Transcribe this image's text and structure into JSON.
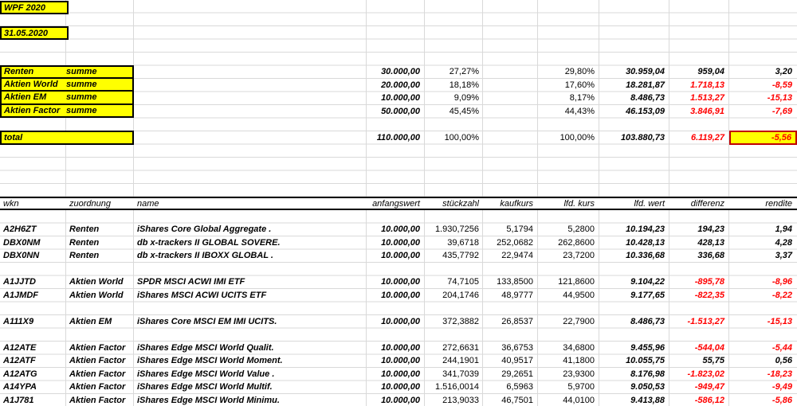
{
  "page": {
    "title": "WPF 2020",
    "date": "31.05.2020"
  },
  "colors": {
    "highlight": "#ffff00",
    "negative": "#ff0000",
    "box_border": "#000000",
    "total_rendite_border": "#c00000"
  },
  "summary": {
    "rows": [
      {
        "label": "Renten",
        "sub": "summe",
        "anfangswert": "30.000,00",
        "anteil_plan": "27,27%",
        "anteil_ist": "29,80%",
        "wert": "30.959,04",
        "differenz": "959,04",
        "rendite": "3,20"
      },
      {
        "label": "Aktien World",
        "sub": "summe",
        "anfangswert": "20.000,00",
        "anteil_plan": "18,18%",
        "anteil_ist": "17,60%",
        "wert": "18.281,87",
        "differenz": "1.718,13",
        "rendite": "-8,59"
      },
      {
        "label": "Aktien EM",
        "sub": "summe",
        "anfangswert": "10.000,00",
        "anteil_plan": "9,09%",
        "anteil_ist": "8,17%",
        "wert": "8.486,73",
        "differenz": "1.513,27",
        "rendite": "-15,13"
      },
      {
        "label": "Aktien Factor",
        "sub": "summe",
        "anfangswert": "50.000,00",
        "anteil_plan": "45,45%",
        "anteil_ist": "44,43%",
        "wert": "46.153,09",
        "differenz": "3.846,91",
        "rendite": "-7,69"
      }
    ],
    "total": {
      "label": "total",
      "anfangswert": "110.000,00",
      "anteil_plan": "100,00%",
      "anteil_ist": "100,00%",
      "wert": "103.880,73",
      "differenz": "6.119,27",
      "rendite": "-5,56"
    }
  },
  "table": {
    "headers": [
      "wkn",
      "zuordnung",
      "name",
      "anfangswert",
      "stückzahl",
      "kaufkurs",
      "lfd. kurs",
      "lfd. wert",
      "differenz",
      "rendite"
    ],
    "rows": [
      {
        "wkn": "A2H6ZT",
        "zuordnung": "Renten",
        "name": "iShares Core Global Aggregate .",
        "anfangswert": "10.000,00",
        "stueckzahl": "1.930,7256",
        "kaufkurs": "5,1794",
        "kurs": "5,2800",
        "wert": "10.194,23",
        "differenz": "194,23",
        "rendite": "1,94"
      },
      {
        "wkn": "DBX0NM",
        "zuordnung": "Renten",
        "name": "db x-trackers II GLOBAL SOVERE.",
        "anfangswert": "10.000,00",
        "stueckzahl": "39,6718",
        "kaufkurs": "252,0682",
        "kurs": "262,8600",
        "wert": "10.428,13",
        "differenz": "428,13",
        "rendite": "4,28"
      },
      {
        "wkn": "DBX0NN",
        "zuordnung": "Renten",
        "name": "db x-trackers II IBOXX GLOBAL .",
        "anfangswert": "10.000,00",
        "stueckzahl": "435,7792",
        "kaufkurs": "22,9474",
        "kurs": "23,7200",
        "wert": "10.336,68",
        "differenz": "336,68",
        "rendite": "3,37"
      },
      {
        "wkn": "A1JJTD",
        "zuordnung": "Aktien World",
        "name": "SPDR MSCI ACWI IMI ETF",
        "anfangswert": "10.000,00",
        "stueckzahl": "74,7105",
        "kaufkurs": "133,8500",
        "kurs": "121,8600",
        "wert": "9.104,22",
        "differenz": "-895,78",
        "rendite": "-8,96",
        "gap_before": true
      },
      {
        "wkn": "A1JMDF",
        "zuordnung": "Aktien World",
        "name": "iShares MSCI ACWI UCITS ETF",
        "anfangswert": "10.000,00",
        "stueckzahl": "204,1746",
        "kaufkurs": "48,9777",
        "kurs": "44,9500",
        "wert": "9.177,65",
        "differenz": "-822,35",
        "rendite": "-8,22"
      },
      {
        "wkn": "A111X9",
        "zuordnung": "Aktien EM",
        "name": "iShares Core MSCI EM IMI UCITS.",
        "anfangswert": "10.000,00",
        "stueckzahl": "372,3882",
        "kaufkurs": "26,8537",
        "kurs": "22,7900",
        "wert": "8.486,73",
        "differenz": "-1.513,27",
        "rendite": "-15,13",
        "gap_before": true
      },
      {
        "wkn": "A12ATE",
        "zuordnung": "Aktien Factor",
        "name": "iShares Edge MSCI World Qualit.",
        "anfangswert": "10.000,00",
        "stueckzahl": "272,6631",
        "kaufkurs": "36,6753",
        "kurs": "34,6800",
        "wert": "9.455,96",
        "differenz": "-544,04",
        "rendite": "-5,44",
        "gap_before": true
      },
      {
        "wkn": "A12ATF",
        "zuordnung": "Aktien Factor",
        "name": "iShares Edge MSCI World Moment.",
        "anfangswert": "10.000,00",
        "stueckzahl": "244,1901",
        "kaufkurs": "40,9517",
        "kurs": "41,1800",
        "wert": "10.055,75",
        "differenz": "55,75",
        "rendite": "0,56"
      },
      {
        "wkn": "A12ATG",
        "zuordnung": "Aktien Factor",
        "name": "iShares Edge MSCI World Value .",
        "anfangswert": "10.000,00",
        "stueckzahl": "341,7039",
        "kaufkurs": "29,2651",
        "kurs": "23,9300",
        "wert": "8.176,98",
        "differenz": "-1.823,02",
        "rendite": "-18,23"
      },
      {
        "wkn": "A14YPA",
        "zuordnung": "Aktien Factor",
        "name": "iShares Edge MSCI World Multif.",
        "anfangswert": "10.000,00",
        "stueckzahl": "1.516,0014",
        "kaufkurs": "6,5963",
        "kurs": "5,9700",
        "wert": "9.050,53",
        "differenz": "-949,47",
        "rendite": "-9,49"
      },
      {
        "wkn": "A1J781",
        "zuordnung": "Aktien Factor",
        "name": "iShares Edge MSCI World Minimu.",
        "anfangswert": "10.000,00",
        "stueckzahl": "213,9033",
        "kaufkurs": "46,7501",
        "kurs": "44,0100",
        "wert": "9.413,88",
        "differenz": "-586,12",
        "rendite": "-5,86"
      }
    ]
  }
}
